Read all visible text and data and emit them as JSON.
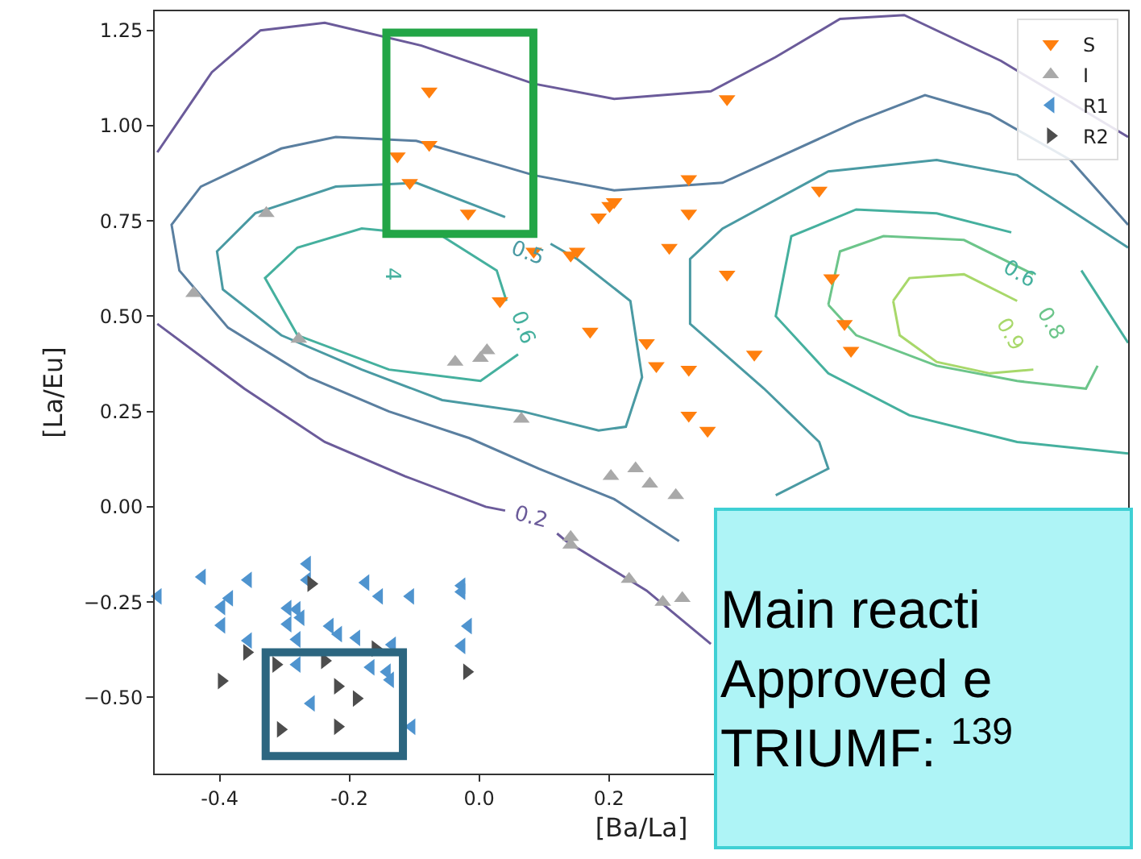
{
  "chart_data": {
    "type": "scatter",
    "xlabel": "[Ba/La]",
    "ylabel": "[La/Eu]",
    "xlim": [
      -0.5,
      1.0
    ],
    "ylim": [
      -0.7,
      1.3
    ],
    "xticks": [
      -0.4,
      -0.2,
      {
        "value": 0.0,
        "label": "0.0"
      },
      0.2
    ],
    "yticks": [
      {
        "value": -0.5,
        "label": "−0.50"
      },
      {
        "value": -0.25,
        "label": "−0.25"
      },
      {
        "value": 0.0,
        "label": "0.00"
      },
      {
        "value": 0.25,
        "label": "0.25"
      },
      {
        "value": 0.5,
        "label": "0.50"
      },
      {
        "value": 0.75,
        "label": "0.75"
      },
      {
        "value": 1.0,
        "label": "1.00"
      },
      {
        "value": 1.25,
        "label": "1.25"
      }
    ],
    "legend": "top right",
    "series": [
      {
        "type": "line",
        "color": "#6b5b9a",
        "marker": "none",
        "x": [
          -0.496,
          -0.412,
          -0.337,
          -0.238,
          -0.089,
          0.084,
          0.208,
          0.357,
          0.457,
          0.556,
          0.655,
          0.804,
          1.0
        ],
        "values": [
          0.93,
          1.14,
          1.25,
          1.27,
          1.21,
          1.11,
          1.07,
          1.09,
          1.18,
          1.28,
          1.29,
          1.17,
          0.97
        ]
      },
      {
        "type": "line",
        "color": "#6b5b9a",
        "marker": "none",
        "x": [
          -0.496,
          -0.362,
          -0.238,
          -0.114,
          0.01,
          0.04,
          null,
          0.12,
          0.134,
          0.258,
          0.357
        ],
        "values": [
          0.48,
          0.31,
          0.17,
          0.08,
          0.0,
          -0.01,
          null,
          -0.07,
          -0.09,
          -0.22,
          -0.36
        ]
      },
      {
        "type": "line",
        "color": "#5a7fa0",
        "marker": "none",
        "x": [
          1.0,
          0.911,
          0.787,
          0.687,
          0.581,
          0.375,
          0.208,
          0.084,
          -0.097,
          -0.221,
          -0.305,
          -0.429,
          -0.474,
          -0.462,
          -0.387,
          -0.263,
          -0.139,
          -0.015,
          0.092,
          0.208,
          0.308
        ],
        "values": [
          0.74,
          0.91,
          1.03,
          1.08,
          1.01,
          0.85,
          0.83,
          0.87,
          0.96,
          0.97,
          0.94,
          0.84,
          0.74,
          0.62,
          0.47,
          0.34,
          0.25,
          0.18,
          0.1,
          0.02,
          -0.09
        ]
      },
      {
        "type": "line",
        "color": "#4a9aa3",
        "marker": "none",
        "x": [
          0.04,
          -0.097,
          -0.221,
          -0.345,
          -0.404,
          -0.395,
          -0.305,
          -0.181,
          -0.057,
          0.067,
          0.184,
          0.226,
          0.251,
          0.233,
          0.151,
          0.11
        ],
        "values": [
          0.76,
          0.85,
          0.84,
          0.77,
          0.67,
          0.57,
          0.45,
          0.36,
          0.28,
          0.25,
          0.2,
          0.21,
          0.34,
          0.54,
          0.65,
          0.69
        ]
      },
      {
        "type": "line",
        "color": "#4a9aa3",
        "marker": "none",
        "x": [
          0.457,
          0.538,
          0.524,
          0.439,
          0.325,
          0.325,
          0.375,
          0.538,
          0.705,
          0.829,
          1.0
        ],
        "values": [
          0.03,
          0.1,
          0.17,
          0.31,
          0.48,
          0.65,
          0.73,
          0.88,
          0.91,
          0.87,
          0.68
        ]
      },
      {
        "type": "line",
        "color": "#45b09e",
        "marker": "none",
        "x": [
          0.06,
          0.002,
          -0.139,
          -0.28,
          -0.33,
          -0.28,
          -0.181,
          -0.057,
          0.027,
          0.042
        ],
        "values": [
          0.4,
          0.33,
          0.36,
          0.45,
          0.6,
          0.68,
          0.73,
          0.71,
          0.62,
          0.54
        ]
      },
      {
        "type": "line",
        "color": "#45b09e",
        "marker": "none",
        "x": [
          1.0,
          0.829,
          0.663,
          0.538,
          0.457,
          0.481,
          0.581,
          0.705,
          0.82,
          null,
          0.928,
          1.0
        ],
        "values": [
          0.14,
          0.17,
          0.24,
          0.35,
          0.5,
          0.71,
          0.78,
          0.77,
          0.72,
          null,
          0.62,
          0.43
        ]
      },
      {
        "type": "line",
        "color": "#6cc58a",
        "marker": "none",
        "x": [
          0.538,
          0.556,
          0.623,
          0.747,
          0.854,
          null,
          0.953,
          0.935,
          0.829,
          0.705,
          0.581,
          0.538
        ],
        "values": [
          0.53,
          0.67,
          0.71,
          0.7,
          0.61,
          null,
          0.37,
          0.31,
          0.33,
          0.37,
          0.45,
          0.53
        ]
      },
      {
        "type": "line",
        "color": "#a8d86a",
        "marker": "none",
        "x": [
          0.638,
          0.663,
          0.747,
          0.829,
          null,
          0.854,
          0.787,
          0.705,
          0.648,
          0.638
        ],
        "values": [
          0.54,
          0.6,
          0.61,
          0.54,
          null,
          0.36,
          0.35,
          0.38,
          0.45,
          0.54
        ]
      },
      {
        "name": "S",
        "color": "#ff7f0e",
        "marker": "triangle-down",
        "x": [
          -0.077,
          -0.077,
          -0.126,
          -0.107,
          -0.017,
          0.084,
          0.151,
          0.141,
          0.184,
          0.201,
          0.382,
          0.323,
          0.524,
          0.323,
          0.293,
          0.382,
          0.543,
          0.258,
          0.563,
          0.573,
          0.273,
          0.323,
          0.424,
          0.323,
          0.352,
          0.208,
          0.032,
          0.171
        ],
        "values": [
          1.09,
          0.95,
          0.92,
          0.85,
          0.77,
          0.67,
          0.67,
          0.66,
          0.76,
          0.79,
          1.07,
          0.86,
          0.83,
          0.77,
          0.68,
          0.61,
          0.6,
          0.43,
          0.48,
          0.41,
          0.37,
          0.36,
          0.4,
          0.24,
          0.2,
          0.8,
          0.54,
          0.46
        ]
      },
      {
        "name": "I",
        "color": "#a9a9a9",
        "marker": "triangle-up",
        "x": [
          -0.328,
          -0.44,
          -0.278,
          -0.037,
          0.002,
          0.012,
          0.065,
          0.141,
          0.141,
          0.203,
          0.241,
          0.263,
          0.303,
          0.231,
          0.283,
          0.313
        ],
        "values": [
          0.77,
          0.56,
          0.44,
          0.38,
          0.39,
          0.41,
          0.23,
          -0.08,
          -0.1,
          0.08,
          0.1,
          0.06,
          0.03,
          -0.19,
          -0.25,
          -0.24
        ]
      },
      {
        "name": "R1",
        "color": "#4f94cf",
        "marker": "triangle-left",
        "x": [
          -0.495,
          -0.427,
          -0.356,
          -0.265,
          -0.265,
          -0.385,
          -0.397,
          -0.295,
          -0.281,
          -0.397,
          -0.295,
          -0.275,
          -0.356,
          -0.281,
          -0.23,
          -0.217,
          -0.189,
          -0.175,
          -0.154,
          -0.106,
          -0.027,
          -0.027,
          -0.017,
          -0.027,
          -0.281,
          -0.259,
          -0.167,
          -0.142,
          -0.137,
          -0.134,
          -0.104
        ],
        "values": [
          -0.235,
          -0.184,
          -0.192,
          -0.15,
          -0.192,
          -0.24,
          -0.263,
          -0.266,
          -0.269,
          -0.311,
          -0.308,
          -0.291,
          -0.351,
          -0.348,
          -0.313,
          -0.334,
          -0.344,
          -0.199,
          -0.235,
          -0.235,
          -0.207,
          -0.223,
          -0.313,
          -0.365,
          -0.414,
          -0.516,
          -0.421,
          -0.433,
          -0.454,
          -0.362,
          -0.577
        ]
      },
      {
        "name": "R2",
        "color": "#4d4d4d",
        "marker": "triangle-right",
        "x": [
          -0.259,
          -0.358,
          -0.397,
          -0.313,
          -0.238,
          -0.218,
          -0.189,
          -0.306,
          -0.218,
          -0.16,
          -0.019
        ],
        "values": [
          -0.202,
          -0.382,
          -0.457,
          -0.414,
          -0.404,
          -0.471,
          -0.503,
          -0.584,
          -0.577,
          -0.372,
          -0.433
        ]
      }
    ],
    "annotations": [
      "0.2",
      "0.5",
      "4",
      "0.6",
      "0.6",
      "0.8",
      "0.9",
      "Main reacti\nApproved e\nTRIUMF: $^{139}$"
    ]
  }
}
